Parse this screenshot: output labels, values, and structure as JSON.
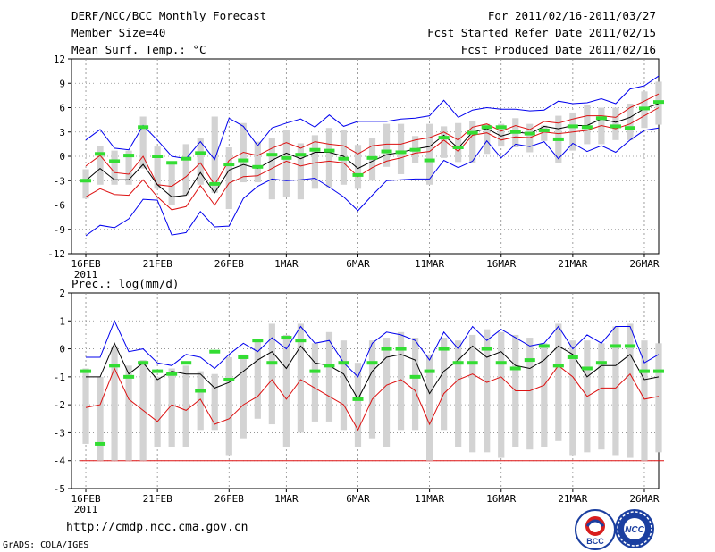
{
  "header": {
    "title": "DERF/NCC/BCC Monthly Forecast",
    "member_size": "Member Size=40",
    "forecast_range": "For 2011/02/16-2011/03/27",
    "started_refer": "Fcst Started Refer Date 2011/02/15",
    "produced_date": "Fcst Produced Date 2011/02/16"
  },
  "footer": {
    "url": "http://cmdp.ncc.cma.gov.cn",
    "grads_credit": "GrADS: COLA/IGES",
    "logo_left_text": "BCC",
    "logo_right_text": "NCC"
  },
  "colors": {
    "ensemble_mean": "#000000",
    "upper_spread": "#dd1111",
    "lower_spread": "#dd1111",
    "extreme": "#0000ee",
    "box": "#d3d3d3",
    "marker": "#33dd33",
    "grid": "#888888"
  },
  "chart_data": [
    {
      "type": "line",
      "title": "Mean Surf. Temp.: °C",
      "xlabel": "",
      "ylabel": "Mean Surf. Temp.: °C",
      "ylim": [
        -12,
        12
      ],
      "yticks": [
        -12,
        -9,
        -6,
        -3,
        0,
        3,
        6,
        9,
        12
      ],
      "xlim": [
        0,
        41
      ],
      "xticks": [
        {
          "day": 1,
          "label": "16FEB"
        },
        {
          "day": 6,
          "label": "21FEB"
        },
        {
          "day": 11,
          "label": "26FEB"
        },
        {
          "day": 15,
          "label": "1MAR"
        },
        {
          "day": 20,
          "label": "6MAR"
        },
        {
          "day": 25,
          "label": "11MAR"
        },
        {
          "day": 30,
          "label": "16MAR"
        },
        {
          "day": 35,
          "label": "21MAR"
        },
        {
          "day": 40,
          "label": "26MAR"
        }
      ],
      "year_label": "2011",
      "grid": true,
      "x": [
        1,
        2,
        3,
        4,
        5,
        6,
        7,
        8,
        9,
        10,
        11,
        12,
        13,
        14,
        15,
        16,
        17,
        18,
        19,
        20,
        21,
        22,
        23,
        24,
        25,
        26,
        27,
        28,
        29,
        30,
        31,
        32,
        33,
        34,
        35,
        36,
        37,
        38,
        39,
        40,
        41
      ],
      "series": [
        {
          "name": "max",
          "color_key": "extreme",
          "values": [
            2.0,
            3.3,
            1.0,
            0.8,
            3.8,
            2.0,
            0.0,
            -0.3,
            1.8,
            -0.4,
            4.7,
            3.7,
            1.3,
            3.5,
            4.1,
            4.6,
            3.6,
            5.1,
            3.7,
            4.3,
            4.3,
            4.3,
            4.6,
            4.7,
            5.0,
            6.9,
            4.8,
            5.7,
            6.0,
            5.8,
            5.8,
            5.6,
            5.7,
            6.8,
            6.5,
            6.6,
            7.1,
            6.5,
            8.3,
            8.7,
            9.9
          ]
        },
        {
          "name": "upper",
          "color_key": "upper_spread",
          "values": [
            -1.2,
            0.1,
            -2.0,
            -2.2,
            0.0,
            -3.5,
            -3.7,
            -2.5,
            -0.8,
            -3.5,
            -0.5,
            0.5,
            0.1,
            1.0,
            1.7,
            1.0,
            1.8,
            1.5,
            1.3,
            0.3,
            1.3,
            1.5,
            1.5,
            2.0,
            2.3,
            3.0,
            2.0,
            3.6,
            4.0,
            3.1,
            3.8,
            3.3,
            4.3,
            4.1,
            4.6,
            5.0,
            5.0,
            4.8,
            6.0,
            6.8,
            7.7
          ]
        },
        {
          "name": "mean",
          "color_key": "ensemble_mean",
          "values": [
            -3.0,
            -1.5,
            -2.9,
            -2.9,
            -1.0,
            -3.5,
            -5.0,
            -4.8,
            -2.0,
            -4.5,
            -1.7,
            -1.0,
            -1.5,
            -0.5,
            0.4,
            -0.3,
            0.5,
            0.5,
            0.0,
            -1.5,
            -0.6,
            0.2,
            0.5,
            0.9,
            1.2,
            2.6,
            1.0,
            3.0,
            3.4,
            2.5,
            3.0,
            2.8,
            3.7,
            3.4,
            3.8,
            3.8,
            4.6,
            4.2,
            4.8,
            5.9,
            6.5
          ]
        },
        {
          "name": "lower",
          "color_key": "lower_spread",
          "values": [
            -5.0,
            -4.0,
            -4.7,
            -4.8,
            -2.9,
            -5.0,
            -6.6,
            -6.2,
            -3.6,
            -6.0,
            -3.3,
            -2.5,
            -2.4,
            -1.5,
            -0.6,
            -1.2,
            -0.8,
            -0.6,
            -0.8,
            -2.5,
            -1.4,
            -0.6,
            -0.2,
            0.4,
            0.6,
            2.0,
            0.6,
            2.6,
            2.9,
            2.0,
            2.4,
            2.3,
            3.0,
            2.8,
            3.0,
            3.2,
            3.8,
            3.4,
            4.0,
            5.0,
            6.0
          ]
        },
        {
          "name": "min",
          "color_key": "extreme",
          "values": [
            -9.8,
            -8.5,
            -8.8,
            -7.7,
            -5.3,
            -5.4,
            -9.7,
            -9.4,
            -6.8,
            -8.7,
            -8.6,
            -5.2,
            -3.7,
            -2.8,
            -3.0,
            -2.9,
            -2.7,
            -3.8,
            -5.0,
            -6.7,
            -4.8,
            -3.0,
            -2.9,
            -2.8,
            -2.8,
            -0.5,
            -1.4,
            -0.6,
            1.9,
            -0.2,
            1.5,
            1.2,
            1.8,
            -0.3,
            1.6,
            0.6,
            1.3,
            0.5,
            2.0,
            3.2,
            3.5
          ]
        }
      ],
      "boxes": {
        "low": [
          -5.2,
          -3.5,
          -3.5,
          -3.5,
          -1.5,
          -4.0,
          -6.0,
          -4.8,
          -3.5,
          -4.5,
          -6.5,
          -3.2,
          -3.2,
          -5.3,
          -5.0,
          -5.3,
          -4.0,
          -3.8,
          -3.5,
          -4.0,
          -3.0,
          -1.3,
          -2.2,
          -0.8,
          -3.5,
          -0.2,
          -0.7,
          -0.8,
          0.3,
          1.2,
          1.1,
          0.5,
          1.9,
          -0.8,
          0.7,
          1.5,
          1.5,
          2.0,
          2.0,
          3.5,
          3.9
        ],
        "high": [
          -1.6,
          1.3,
          0.7,
          0.7,
          4.9,
          1.2,
          -0.8,
          1.5,
          2.3,
          4.9,
          1.1,
          4.1,
          1.8,
          2.2,
          3.3,
          1.6,
          2.6,
          3.5,
          3.3,
          1.4,
          2.2,
          4.0,
          4.0,
          2.5,
          4.0,
          3.7,
          4.1,
          4.3,
          4.0,
          4.0,
          4.7,
          4.0,
          3.8,
          5.0,
          5.4,
          6.3,
          6.0,
          6.0,
          6.5,
          8.0,
          9.2
        ]
      },
      "markers": [
        -3.0,
        0.3,
        -0.6,
        0.1,
        3.6,
        0.0,
        -0.8,
        -0.3,
        0.4,
        -3.4,
        -1.0,
        -0.5,
        -1.3,
        0.2,
        -0.2,
        0.2,
        0.8,
        0.7,
        -0.3,
        -2.3,
        -0.2,
        0.6,
        0.5,
        0.8,
        -0.5,
        2.3,
        1.1,
        2.9,
        3.6,
        3.6,
        3.0,
        2.8,
        3.2,
        2.1,
        3.7,
        3.6,
        4.7,
        3.7,
        3.5,
        5.9,
        6.7
      ]
    },
    {
      "type": "line",
      "title": "Prec.: log(mm/d)",
      "xlabel": "",
      "ylabel": "Prec.: log(mm/d)",
      "ylim": [
        -5,
        2
      ],
      "yticks": [
        -5,
        -4,
        -3,
        -2,
        -1,
        0,
        1,
        2
      ],
      "xlim": [
        0,
        41
      ],
      "xticks": [
        {
          "day": 1,
          "label": "16FEB"
        },
        {
          "day": 6,
          "label": "21FEB"
        },
        {
          "day": 11,
          "label": "26FEB"
        },
        {
          "day": 15,
          "label": "1MAR"
        },
        {
          "day": 20,
          "label": "6MAR"
        },
        {
          "day": 25,
          "label": "11MAR"
        },
        {
          "day": 30,
          "label": "16MAR"
        },
        {
          "day": 35,
          "label": "21MAR"
        },
        {
          "day": 40,
          "label": "26MAR"
        }
      ],
      "year_label": "2011",
      "grid": true,
      "floor_value": -4,
      "x": [
        1,
        2,
        3,
        4,
        5,
        6,
        7,
        8,
        9,
        10,
        11,
        12,
        13,
        14,
        15,
        16,
        17,
        18,
        19,
        20,
        21,
        22,
        23,
        24,
        25,
        26,
        27,
        28,
        29,
        30,
        31,
        32,
        33,
        34,
        35,
        36,
        37,
        38,
        39,
        40,
        41
      ],
      "series": [
        {
          "name": "max",
          "color_key": "extreme",
          "values": [
            -0.3,
            -0.3,
            1.0,
            -0.1,
            0.0,
            -0.5,
            -0.6,
            -0.2,
            -0.3,
            -0.7,
            -0.2,
            0.2,
            -0.1,
            0.4,
            0.0,
            0.8,
            0.2,
            0.3,
            -0.5,
            -1.0,
            0.2,
            0.6,
            0.5,
            0.3,
            -0.4,
            0.6,
            0.0,
            0.8,
            0.3,
            0.7,
            0.4,
            0.1,
            0.2,
            0.8,
            0.0,
            0.5,
            0.2,
            0.8,
            0.8,
            -0.5,
            -0.2
          ]
        },
        {
          "name": "mean",
          "color_key": "ensemble_mean",
          "values": [
            -1.0,
            -1.0,
            0.2,
            -0.9,
            -0.5,
            -1.1,
            -0.8,
            -0.9,
            -0.9,
            -1.4,
            -1.2,
            -0.8,
            -0.4,
            -0.1,
            -0.7,
            0.1,
            -0.5,
            -0.6,
            -0.9,
            -1.8,
            -0.8,
            -0.3,
            -0.2,
            -0.4,
            -1.6,
            -0.8,
            -0.4,
            0.1,
            -0.3,
            -0.1,
            -0.6,
            -0.7,
            -0.4,
            0.1,
            -0.2,
            -1.0,
            -0.6,
            -0.6,
            -0.2,
            -1.1,
            -1.0
          ]
        },
        {
          "name": "lower",
          "color_key": "lower_spread",
          "values": [
            -2.1,
            -2.0,
            -0.7,
            -1.8,
            -2.2,
            -2.6,
            -2.0,
            -2.2,
            -1.8,
            -2.7,
            -2.5,
            -2.0,
            -1.7,
            -1.1,
            -1.8,
            -1.1,
            -1.4,
            -1.7,
            -2.0,
            -2.9,
            -1.8,
            -1.3,
            -1.1,
            -1.5,
            -2.7,
            -1.6,
            -1.1,
            -0.9,
            -1.2,
            -1.0,
            -1.5,
            -1.5,
            -1.3,
            -0.6,
            -1.0,
            -1.7,
            -1.4,
            -1.4,
            -0.9,
            -1.8,
            -1.7
          ]
        }
      ],
      "boxes": {
        "low": [
          -3.4,
          -4.0,
          -4.0,
          -4.0,
          -4.0,
          -3.5,
          -3.5,
          -3.5,
          -2.9,
          -2.9,
          -3.8,
          -3.2,
          -2.5,
          -2.7,
          -3.5,
          -3.0,
          -2.6,
          -2.6,
          -2.9,
          -3.5,
          -3.2,
          -3.5,
          -2.9,
          -2.9,
          -4.0,
          -2.9,
          -3.5,
          -3.7,
          -3.7,
          -3.9,
          -3.5,
          -3.6,
          -3.5,
          -3.3,
          -3.8,
          -3.7,
          -3.6,
          -3.8,
          -3.9,
          -4.0,
          -3.7
        ],
        "high": [
          -0.7,
          -1.0,
          0.1,
          -0.6,
          -0.4,
          -1.0,
          -0.7,
          -0.6,
          -0.8,
          -0.9,
          -0.3,
          -0.2,
          0.3,
          0.9,
          0.5,
          0.9,
          0.2,
          0.6,
          0.3,
          -0.5,
          0.3,
          0.4,
          0.6,
          0.4,
          -0.2,
          0.4,
          0.3,
          0.5,
          0.7,
          0.6,
          0.5,
          0.4,
          0.2,
          0.9,
          0.3,
          0.3,
          0.2,
          0.8,
          0.9,
          0.3,
          0.2
        ]
      },
      "markers": [
        -0.8,
        -3.4,
        -0.6,
        -1.0,
        -0.5,
        -0.8,
        -0.9,
        -0.5,
        -1.5,
        -0.1,
        -1.1,
        -0.3,
        0.3,
        -0.5,
        0.4,
        0.3,
        -0.8,
        -0.6,
        -0.5,
        -1.8,
        -0.5,
        0.0,
        0.0,
        -1.0,
        -0.8,
        0.0,
        -0.5,
        -0.5,
        0.0,
        -0.5,
        -0.7,
        -0.4,
        0.1,
        -0.6,
        -0.3,
        -0.7,
        -0.5,
        0.1,
        0.1,
        -0.8,
        -0.8
      ]
    }
  ]
}
